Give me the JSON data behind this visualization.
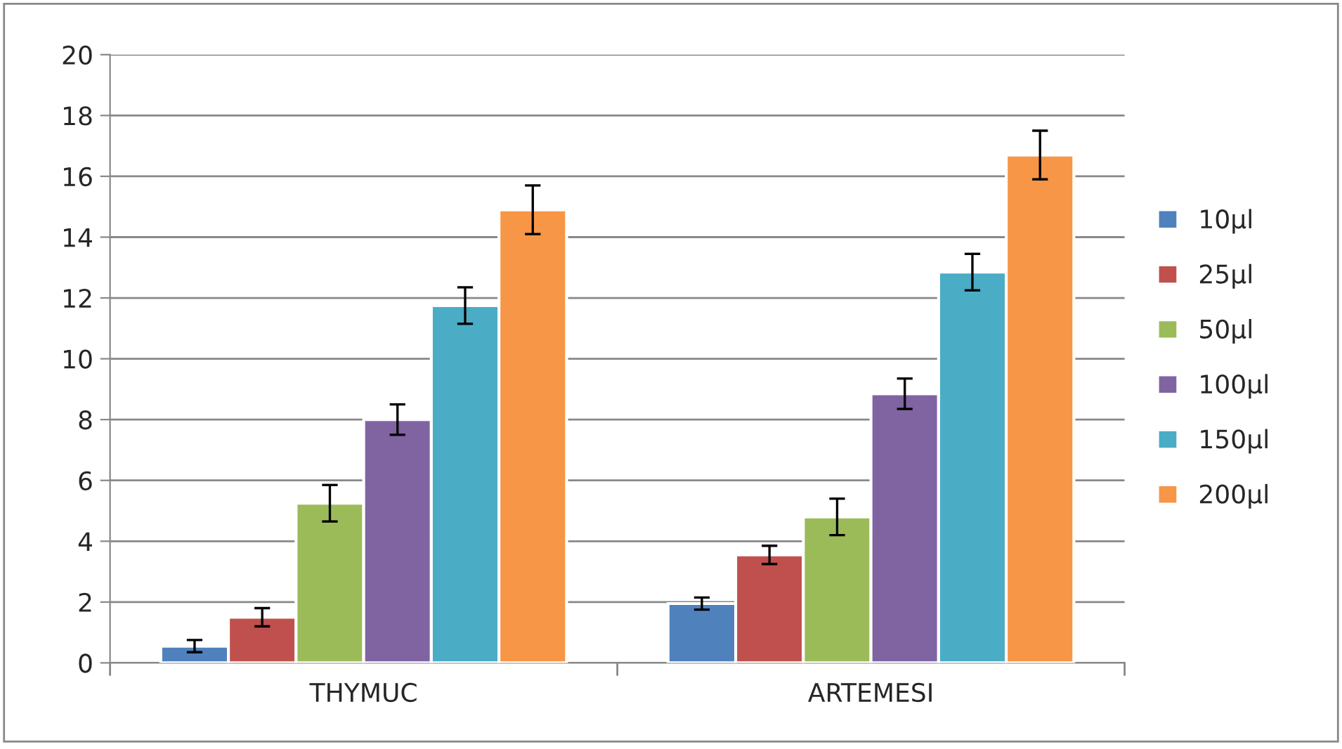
{
  "chart_data": {
    "type": "bar",
    "categories": [
      "THYMUC",
      "ARTEMESI"
    ],
    "series": [
      {
        "name": "10µl",
        "color": "#4f81bd",
        "values": [
          0.55,
          1.95
        ],
        "errors": [
          0.2,
          0.2
        ]
      },
      {
        "name": "25µl",
        "color": "#c0504d",
        "values": [
          1.5,
          3.55
        ],
        "errors": [
          0.3,
          0.3
        ]
      },
      {
        "name": "50µl",
        "color": "#9bbb59",
        "values": [
          5.25,
          4.8
        ],
        "errors": [
          0.6,
          0.6
        ]
      },
      {
        "name": "100µl",
        "color": "#8064a2",
        "values": [
          8.0,
          8.85
        ],
        "errors": [
          0.5,
          0.5
        ]
      },
      {
        "name": "150µl",
        "color": "#4bacc6",
        "values": [
          11.75,
          12.85
        ],
        "errors": [
          0.6,
          0.6
        ]
      },
      {
        "name": "200µl",
        "color": "#f79646",
        "values": [
          14.9,
          16.7
        ],
        "errors": [
          0.8,
          0.8
        ]
      }
    ],
    "ylim": [
      0,
      20
    ],
    "yticks": [
      0,
      2,
      4,
      6,
      8,
      10,
      12,
      14,
      16,
      18,
      20
    ],
    "grid": "y",
    "legend": "right"
  }
}
